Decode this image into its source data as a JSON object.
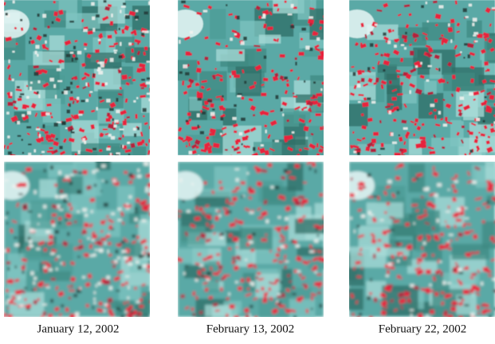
{
  "captions": [
    "January 12, 2002",
    "February 13, 2002",
    "February 22, 2002"
  ]
}
